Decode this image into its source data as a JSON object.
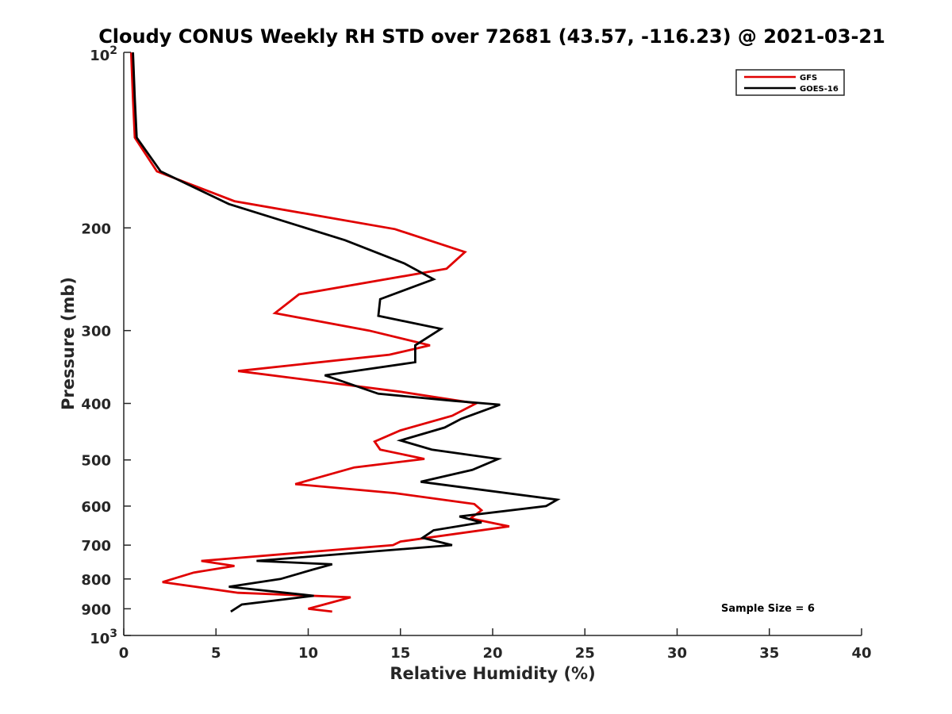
{
  "chart_data": {
    "type": "line",
    "title": "Cloudy CONUS Weekly RH STD over 72681 (43.57, -116.23) @ 2021-03-21",
    "xlabel": "Relative Humidity (%)",
    "ylabel": "Pressure (mb)",
    "xlim": [
      0,
      40
    ],
    "ylim": [
      1000,
      100
    ],
    "y_scale": "log",
    "y_reversed": true,
    "grid": false,
    "legend_position": "top-right",
    "x_ticks": [
      0,
      5,
      10,
      15,
      20,
      25,
      30,
      35,
      40
    ],
    "x_tick_labels": [
      "0",
      "5",
      "10",
      "15",
      "20",
      "25",
      "30",
      "35",
      "40"
    ],
    "y_ticks": [
      200,
      300,
      400,
      500,
      600,
      700,
      800,
      900
    ],
    "y_tick_labels": [
      "200",
      "300",
      "400",
      "500",
      "600",
      "700",
      "800",
      "900"
    ],
    "y_decade_labels": [
      {
        "value": 100,
        "base": "10",
        "exp": "2"
      },
      {
        "value": 1000,
        "base": "10",
        "exp": "3"
      }
    ],
    "annotation": "Sample Size = 6",
    "series": [
      {
        "name": "GFS",
        "color": "#e00000",
        "points": [
          [
            0.4,
            100
          ],
          [
            0.5,
            120
          ],
          [
            0.6,
            140
          ],
          [
            1.8,
            160
          ],
          [
            6,
            180
          ],
          [
            14.7,
            201
          ],
          [
            18.5,
            220
          ],
          [
            17.5,
            235
          ],
          [
            16.5,
            238
          ],
          [
            9.5,
            260
          ],
          [
            8.2,
            280
          ],
          [
            13.3,
            300
          ],
          [
            16.6,
            318
          ],
          [
            14.4,
            330
          ],
          [
            6.2,
            352
          ],
          [
            15,
            382
          ],
          [
            19.1,
            400
          ],
          [
            17.8,
            420
          ],
          [
            15,
            445
          ],
          [
            13.6,
            465
          ],
          [
            13.9,
            480
          ],
          [
            16.3,
            498
          ],
          [
            12.5,
            515
          ],
          [
            9.3,
            550
          ],
          [
            14.7,
            570
          ],
          [
            19,
            595
          ],
          [
            19.4,
            610
          ],
          [
            18.8,
            630
          ],
          [
            20.9,
            650
          ],
          [
            15,
            690
          ],
          [
            14.6,
            700
          ],
          [
            4.2,
            745
          ],
          [
            6,
            760
          ],
          [
            3.8,
            780
          ],
          [
            2.1,
            810
          ],
          [
            6.2,
            845
          ],
          [
            12.3,
            860
          ],
          [
            10,
            900
          ],
          [
            11.3,
            910
          ]
        ]
      },
      {
        "name": "GOES-16",
        "color": "#000000",
        "points": [
          [
            0.5,
            100
          ],
          [
            0.6,
            120
          ],
          [
            0.7,
            140
          ],
          [
            2,
            160
          ],
          [
            5.7,
            182
          ],
          [
            12,
            210
          ],
          [
            15.2,
            230
          ],
          [
            16.8,
            245
          ],
          [
            13.9,
            265
          ],
          [
            13.8,
            283
          ],
          [
            17.2,
            298
          ],
          [
            15.8,
            318
          ],
          [
            15.8,
            340
          ],
          [
            10.9,
            358
          ],
          [
            13.8,
            385
          ],
          [
            17.9,
            396
          ],
          [
            20.4,
            402
          ],
          [
            18.3,
            425
          ],
          [
            17.4,
            440
          ],
          [
            15,
            463
          ],
          [
            16.7,
            480
          ],
          [
            20.3,
            498
          ],
          [
            18.9,
            520
          ],
          [
            16.1,
            545
          ],
          [
            23.5,
            585
          ],
          [
            22.9,
            600
          ],
          [
            18.2,
            625
          ],
          [
            19.4,
            640
          ],
          [
            16.8,
            660
          ],
          [
            16.5,
            670
          ],
          [
            16.2,
            680
          ],
          [
            17.8,
            700
          ],
          [
            7.2,
            745
          ],
          [
            11.3,
            755
          ],
          [
            10.3,
            770
          ],
          [
            8.5,
            800
          ],
          [
            5.7,
            825
          ],
          [
            10.3,
            855
          ],
          [
            6.4,
            885
          ],
          [
            5.8,
            910
          ]
        ]
      }
    ]
  }
}
